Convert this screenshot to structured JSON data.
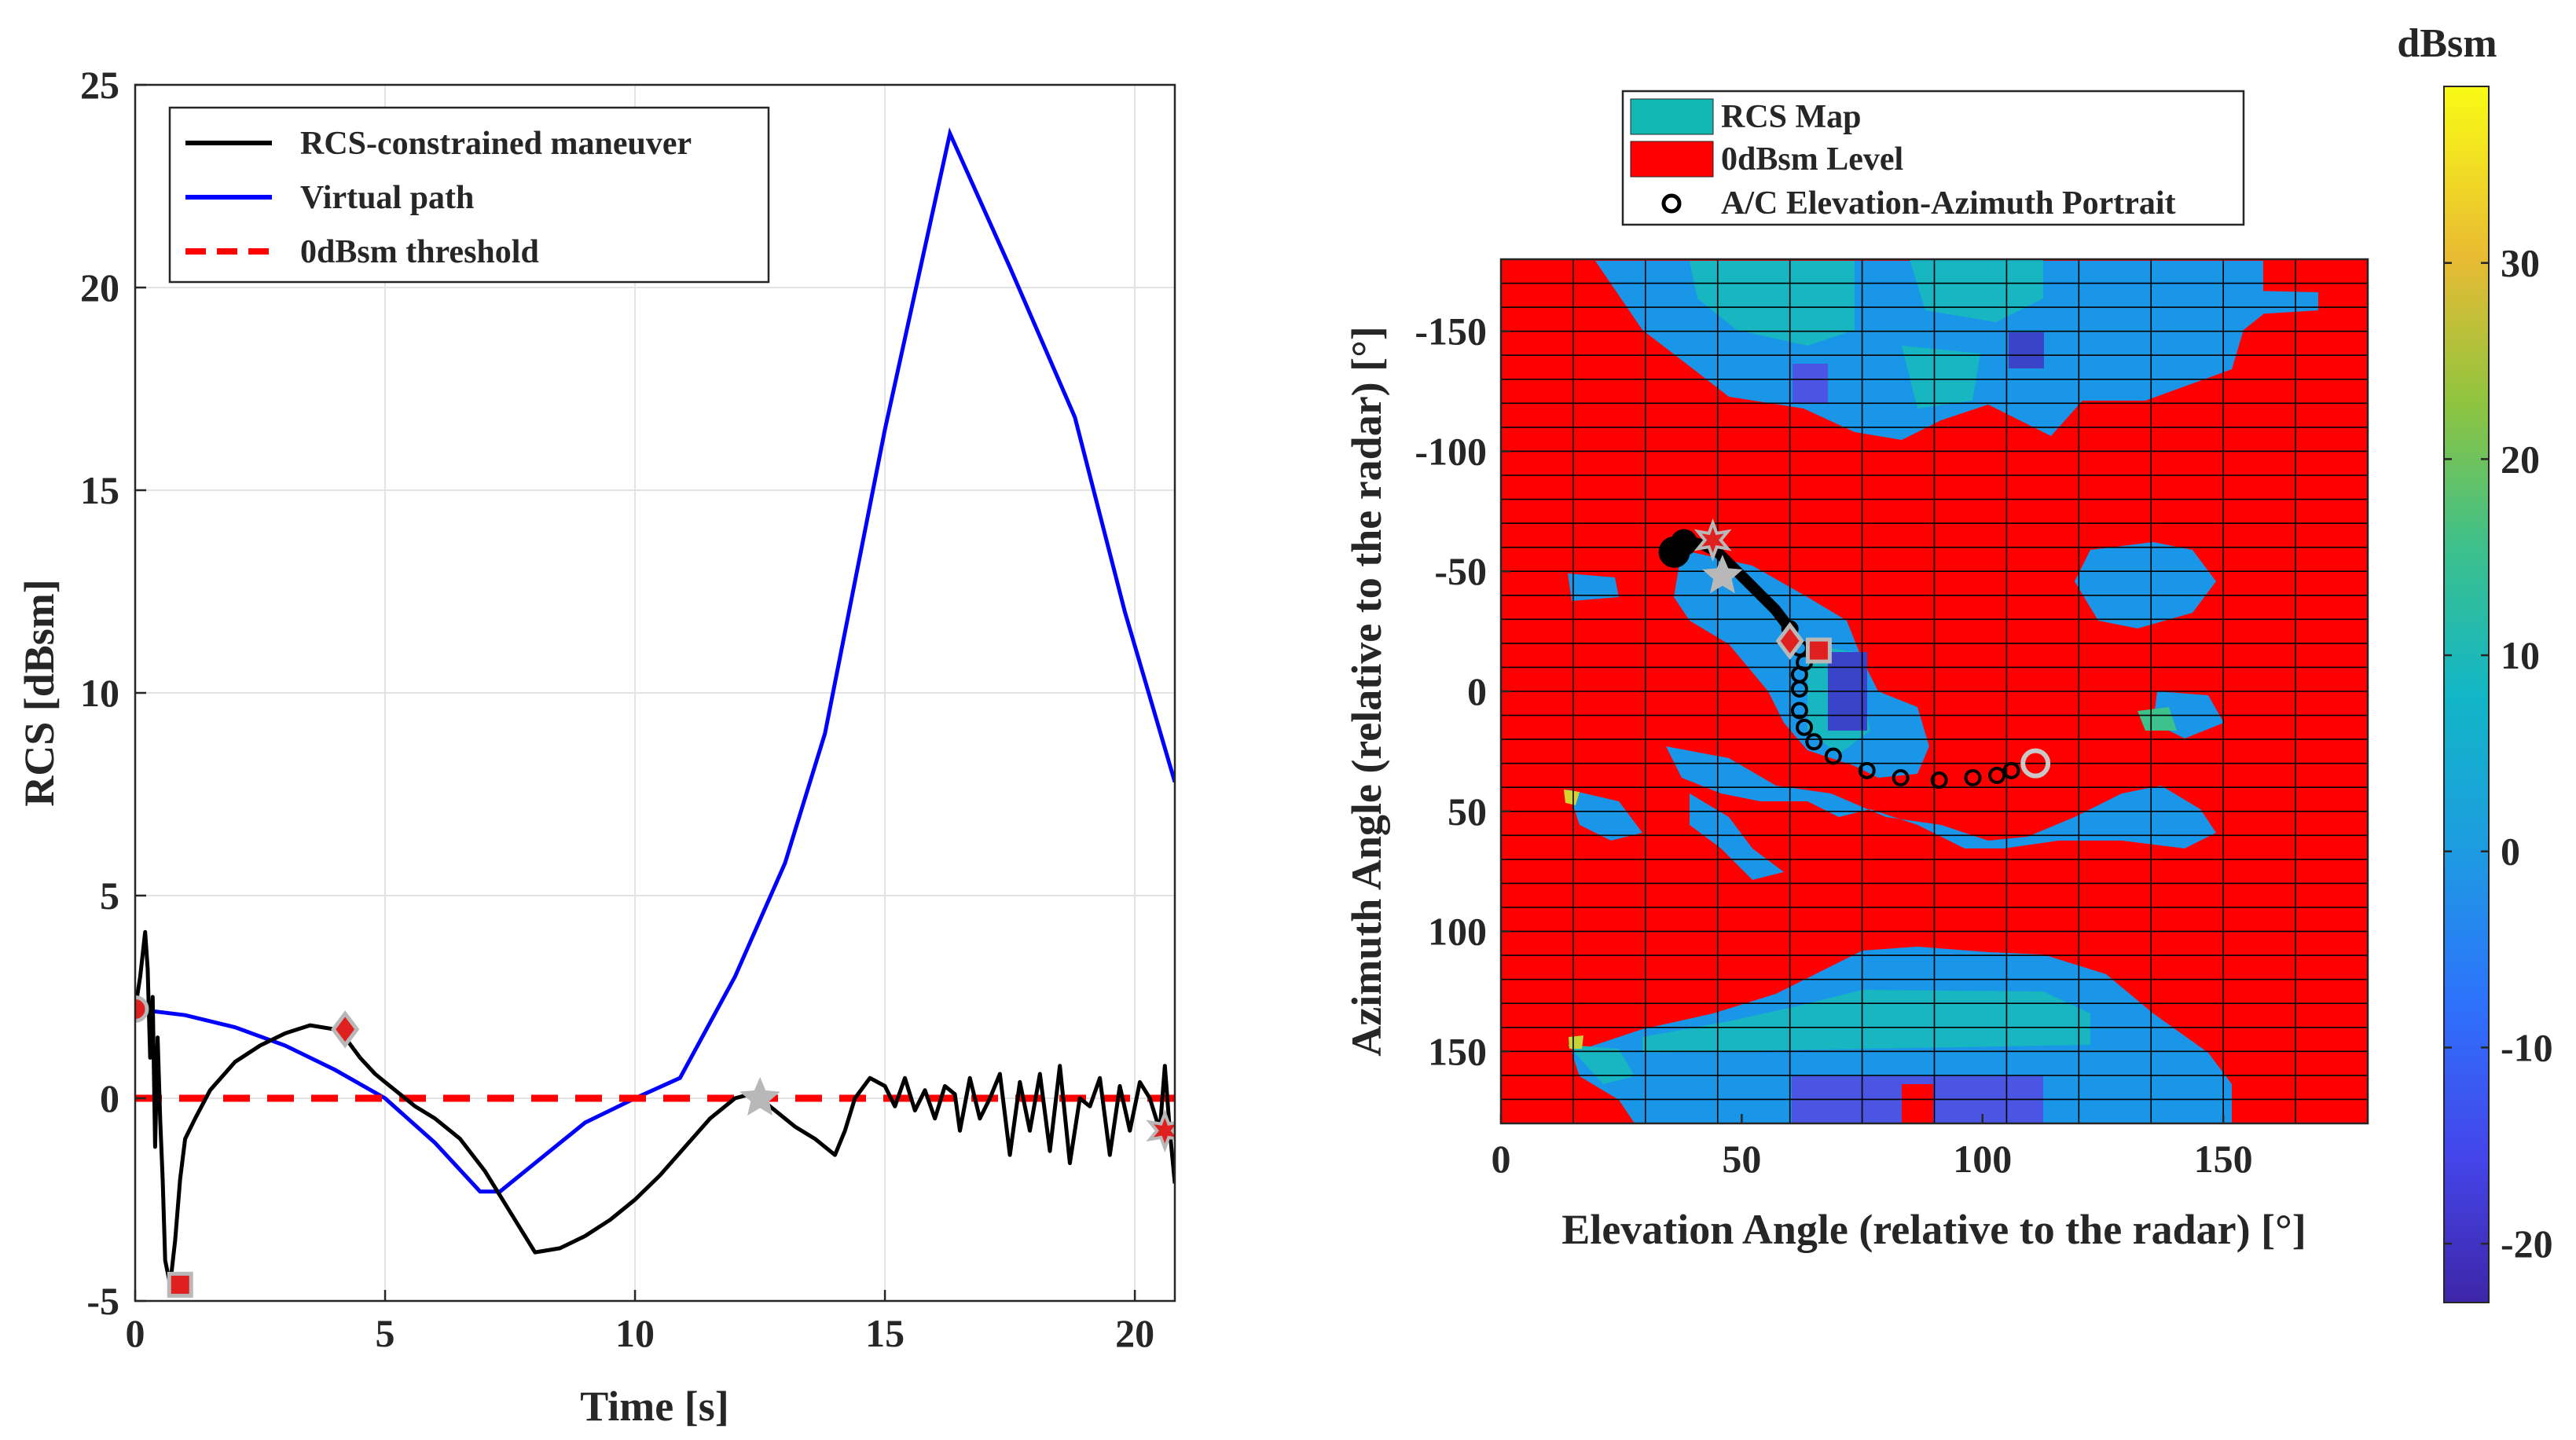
{
  "chart_data": [
    {
      "type": "line",
      "xlabel": "Time [s]",
      "ylabel": "RCS [dBsm]",
      "xlim": [
        0,
        20.8
      ],
      "ylim": [
        -5,
        25
      ],
      "xticks": [
        "0",
        "5",
        "10",
        "15",
        "20"
      ],
      "yticks": [
        "-5",
        "0",
        "5",
        "10",
        "15",
        "20",
        "25"
      ],
      "grid": true,
      "legend_position": "top-left",
      "series": [
        {
          "name": "RCS-constrained maneuver",
          "color": "#000000",
          "style": "solid",
          "x": [
            0,
            0.1,
            0.2,
            0.25,
            0.3,
            0.35,
            0.4,
            0.45,
            0.5,
            0.55,
            0.6,
            0.7,
            0.8,
            0.9,
            1.0,
            1.2,
            1.5,
            2.0,
            2.5,
            3.0,
            3.5,
            4.0,
            4.2,
            4.5,
            4.8,
            5.0,
            5.3,
            5.6,
            6.0,
            6.5,
            7.0,
            7.5,
            8.0,
            8.5,
            9.0,
            9.5,
            10.0,
            10.5,
            11.0,
            11.5,
            12.0,
            12.3,
            12.5,
            12.8,
            13.2,
            13.6,
            14.0,
            14.2,
            14.4,
            14.7,
            15.0,
            15.2,
            15.4,
            15.6,
            15.8,
            16.0,
            16.2,
            16.4,
            16.5,
            16.7,
            16.9,
            17.1,
            17.3,
            17.5,
            17.7,
            17.9,
            18.1,
            18.3,
            18.5,
            18.7,
            18.9,
            19.1,
            19.3,
            19.5,
            19.7,
            19.9,
            20.1,
            20.3,
            20.5,
            20.6,
            20.7,
            20.8
          ],
          "y": [
            2.2,
            3.0,
            4.1,
            3.2,
            1.0,
            2.5,
            -1.2,
            1.5,
            -0.5,
            -2.0,
            -4.0,
            -4.6,
            -3.5,
            -2.0,
            -1.0,
            -0.5,
            0.2,
            0.9,
            1.3,
            1.6,
            1.8,
            1.7,
            1.5,
            1.0,
            0.6,
            0.4,
            0.1,
            -0.2,
            -0.5,
            -1.0,
            -1.8,
            -2.8,
            -3.8,
            -3.7,
            -3.4,
            -3.0,
            -2.5,
            -1.9,
            -1.2,
            -0.5,
            0.0,
            0.1,
            0.0,
            -0.3,
            -0.7,
            -1.0,
            -1.4,
            -0.8,
            0.0,
            0.5,
            0.3,
            -0.2,
            0.5,
            -0.3,
            0.2,
            -0.5,
            0.3,
            0.1,
            -0.8,
            0.5,
            -0.5,
            0.0,
            0.6,
            -1.4,
            0.4,
            -0.8,
            0.6,
            -1.3,
            0.8,
            -1.6,
            0.0,
            -0.2,
            0.5,
            -1.4,
            0.3,
            -0.8,
            0.4,
            0.0,
            -0.8,
            0.8,
            -0.8,
            -2.1
          ]
        },
        {
          "name": "Virtual path",
          "color": "#0000ff",
          "style": "solid",
          "x": [
            0,
            1,
            2,
            3,
            4,
            5,
            6,
            6.9,
            7.3,
            8,
            9,
            10,
            10.9,
            12,
            13,
            13.8,
            15,
            16.3,
            17.5,
            18.8,
            19.8,
            20.8
          ],
          "y": [
            2.2,
            2.05,
            1.75,
            1.3,
            0.7,
            0.0,
            -1.1,
            -2.3,
            -2.3,
            -1.6,
            -0.6,
            0.0,
            0.5,
            3.0,
            5.8,
            9.0,
            16.5,
            23.8,
            20.5,
            16.8,
            12.0,
            7.8
          ]
        },
        {
          "name": "0dBsm threshold",
          "color": "#ff0000",
          "style": "dashed",
          "x": [
            0,
            20.8
          ],
          "y": [
            0,
            0
          ]
        }
      ],
      "markers": [
        {
          "shape": "circle",
          "x": 0.0,
          "y": 2.2
        },
        {
          "shape": "square",
          "x": 0.9,
          "y": -4.6
        },
        {
          "shape": "diamond",
          "x": 4.2,
          "y": 1.7
        },
        {
          "shape": "star",
          "x": 12.5,
          "y": 0.0
        },
        {
          "shape": "hexagram",
          "x": 20.6,
          "y": -0.8
        }
      ]
    },
    {
      "type": "heatmap",
      "xlabel": "Elevation Angle (relative to the radar) [°]",
      "ylabel": "Azimuth Angle (relative to the radar) [°]",
      "xlim": [
        0,
        180
      ],
      "ylim": [
        -180,
        180
      ],
      "xticks": [
        "0",
        "50",
        "100",
        "150"
      ],
      "yticks": [
        "-150",
        "-100",
        "-50",
        "0",
        "50",
        "100",
        "150"
      ],
      "legend_position": "top",
      "legend": [
        {
          "label": "RCS Map",
          "color": "#12b8b4"
        },
        {
          "label": "0dBsm Level",
          "color": "#ff0000"
        },
        {
          "label": "A/C Elevation-Azimuth Portrait",
          "marker": "circle"
        }
      ],
      "colorbar": {
        "title": "dBsm",
        "range": [
          -23,
          39
        ],
        "ticks": [
          "-20",
          "-10",
          "0",
          "10",
          "20",
          "30"
        ]
      },
      "trajectory": {
        "elevation": [
          35,
          36,
          38,
          40,
          42,
          45,
          48,
          51,
          54,
          57,
          60,
          62,
          63,
          62,
          62,
          62,
          63,
          65,
          69,
          76,
          83,
          91,
          98,
          103,
          106,
          111
        ],
        "azimuth": [
          -57,
          -60,
          -62,
          -62,
          -61,
          -58,
          -52,
          -46,
          -40,
          -34,
          -26,
          -18,
          -12,
          -7,
          -1,
          8,
          15,
          21,
          27,
          33,
          36,
          37,
          36,
          35,
          33,
          30
        ]
      },
      "markers": [
        {
          "shape": "hexagram",
          "x": 44,
          "y": -63
        },
        {
          "shape": "star",
          "x": 46,
          "y": -48
        },
        {
          "shape": "diamond",
          "x": 60,
          "y": -21
        },
        {
          "shape": "square",
          "x": 66,
          "y": -17
        },
        {
          "shape": "circle",
          "x": 111,
          "y": 30
        }
      ]
    }
  ],
  "colors": {
    "red": "#ff0000",
    "blue_region": "#1a96e8",
    "deep_blue": "#3a44c8",
    "cyan_region": "#17b6c0"
  }
}
